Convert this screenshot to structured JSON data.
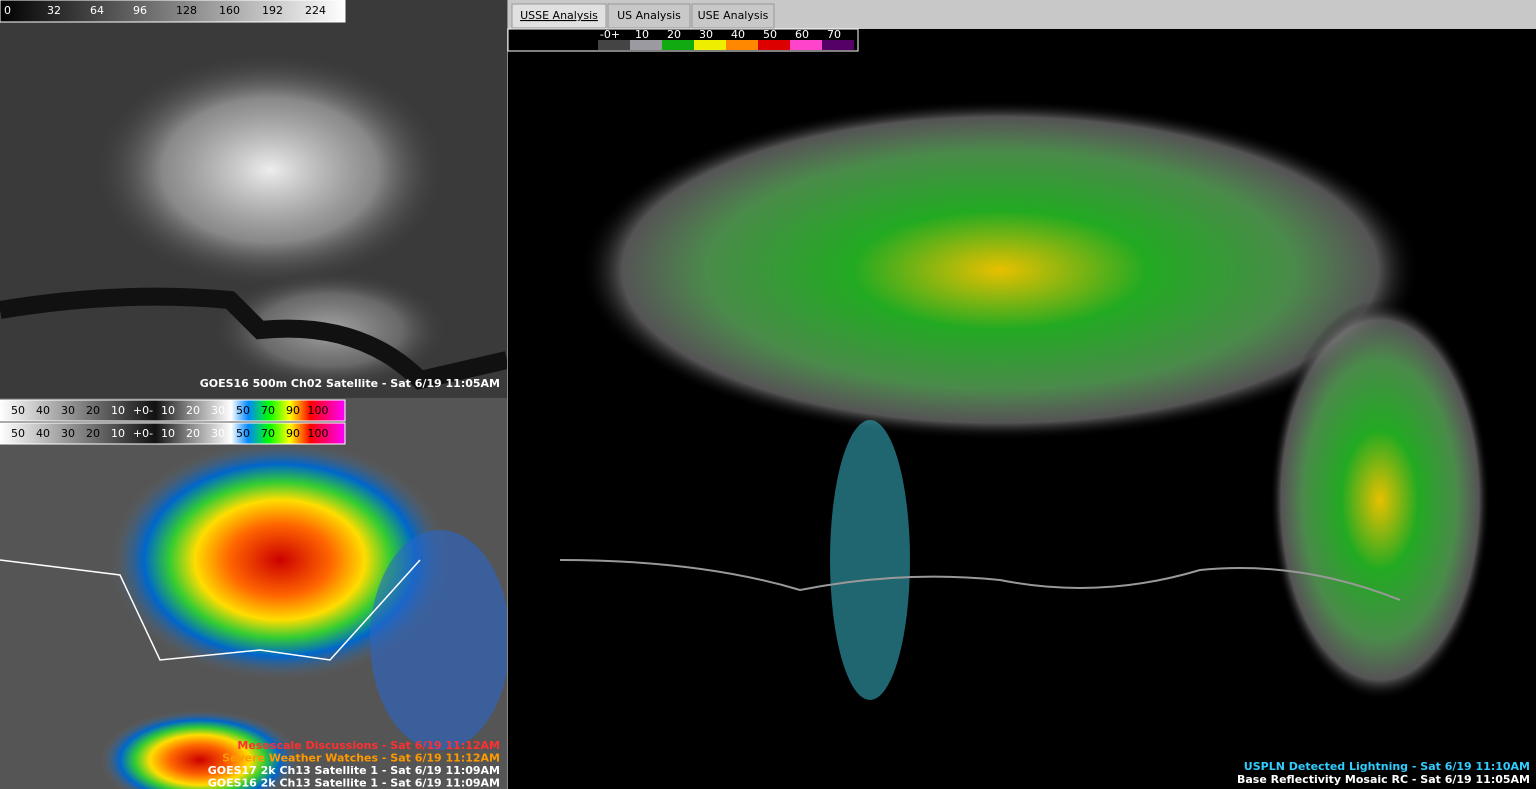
{
  "satellite_panel": {
    "colorbar": [
      "0",
      "32",
      "64",
      "96",
      "128",
      "160",
      "192",
      "224"
    ],
    "label": "GOES16 500m Ch02 Satellite - Sat 6/19 11:05AM"
  },
  "ir_panel": {
    "colorbars": [
      [
        "50",
        "40",
        "30",
        "20",
        "10",
        "+0-",
        "10",
        "20",
        "30",
        "50",
        "70",
        "90",
        "100"
      ],
      [
        "50",
        "40",
        "30",
        "20",
        "10",
        "+0-",
        "10",
        "20",
        "30",
        "50",
        "70",
        "90",
        "100"
      ]
    ],
    "labels": [
      "Mesoscale Discussions - Sat 6/19 11:12AM",
      "Severe Weather Watches - Sat 6/19 11:12AM",
      "GOES17 2k Ch13 Satellite 1 - Sat 6/19 11:09AM",
      "GOES16 2k Ch13 Satellite 1 - Sat 6/19 11:09AM"
    ]
  },
  "tabs": [
    "USSE Analysis",
    "US Analysis",
    "USE Analysis"
  ],
  "radar_panel": {
    "colorbar": [
      "-0+",
      "10",
      "20",
      "30",
      "40",
      "50",
      "60",
      "70"
    ],
    "labels": [
      "USPLN Detected Lightning - Sat 6/19 11:10AM",
      "Base Reflectivity Mosaic RC - Sat 6/19 11:05AM"
    ]
  }
}
